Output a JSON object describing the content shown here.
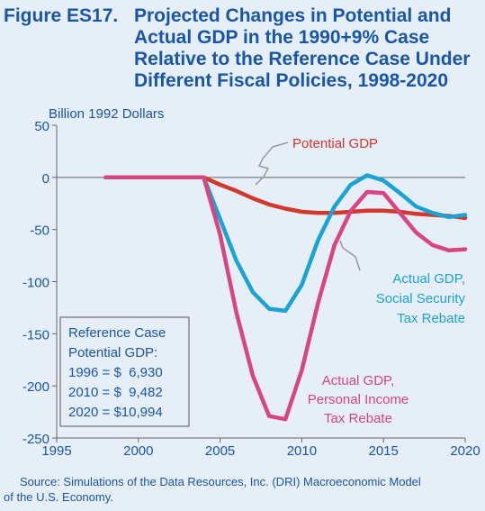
{
  "figure": {
    "label": "Figure ES17.",
    "title_lines": [
      "Projected Changes in Potential and",
      "Actual GDP in the 1990+9% Case",
      "Relative to the Reference Case Under",
      "Different Fiscal Policies, 1998-2020"
    ],
    "source_line1": "Source: Simulations of the Data Resources, Inc. (DRI) Macroeconomic Model",
    "source_line2": "of the U.S. Economy."
  },
  "colors": {
    "background": "#e6eef8",
    "title": "#1a56a8",
    "potential": "#d0392b",
    "social_security": "#1aa3d4",
    "personal_income": "#d9457f",
    "text": "#1a56a8"
  },
  "chart_data": {
    "type": "line",
    "ylabel": "Billion 1992 Dollars",
    "xlabel": "",
    "xlim": [
      1995,
      2020
    ],
    "ylim": [
      -250,
      50
    ],
    "xticks": [
      1995,
      2000,
      2005,
      2010,
      2015,
      2020
    ],
    "yticks": [
      50,
      0,
      -50,
      -100,
      -150,
      -200,
      -250
    ],
    "grid": false,
    "series": [
      {
        "name": "Potential GDP",
        "color": "#d0392b",
        "x": [
          1998,
          2004,
          2005,
          2006,
          2007,
          2008,
          2009,
          2010,
          2011,
          2012,
          2013,
          2014,
          2015,
          2016,
          2017,
          2018,
          2019,
          2020
        ],
        "y": [
          0,
          0,
          -7,
          -13,
          -20,
          -26,
          -30,
          -33,
          -34,
          -34,
          -33,
          -32,
          -32,
          -33,
          -35,
          -36,
          -37,
          -39
        ]
      },
      {
        "name": "Actual GDP, Social Security Tax Rebate",
        "color": "#1aa3d4",
        "x": [
          1998,
          2004,
          2005,
          2006,
          2007,
          2008,
          2009,
          2010,
          2011,
          2012,
          2013,
          2014,
          2015,
          2016,
          2017,
          2018,
          2019,
          2020
        ],
        "y": [
          0,
          0,
          -40,
          -80,
          -110,
          -126,
          -128,
          -103,
          -60,
          -28,
          -7,
          2,
          -3,
          -15,
          -28,
          -34,
          -38,
          -36
        ]
      },
      {
        "name": "Actual GDP, Personal Income Tax Rebate",
        "color": "#d9457f",
        "x": [
          1998,
          2004,
          2005,
          2006,
          2007,
          2008,
          2009,
          2010,
          2011,
          2012,
          2013,
          2014,
          2015,
          2016,
          2017,
          2018,
          2019,
          2020
        ],
        "y": [
          0,
          0,
          -55,
          -130,
          -190,
          -229,
          -232,
          -185,
          -120,
          -65,
          -32,
          -14,
          -15,
          -34,
          -53,
          -65,
          -70,
          -69
        ]
      }
    ],
    "annotations": {
      "potential_label": "Potential GDP",
      "ss_label_lines": [
        "Actual GDP,",
        "Social Security",
        "Tax Rebate"
      ],
      "pi_label_lines": [
        "Actual GDP,",
        "Personal Income",
        "Tax Rebate"
      ],
      "reference_box_lines": [
        "Reference Case",
        "Potential GDP:",
        "1996 = $  6,930",
        "2010 = $  9,482",
        "2020 = $10,994"
      ]
    }
  }
}
